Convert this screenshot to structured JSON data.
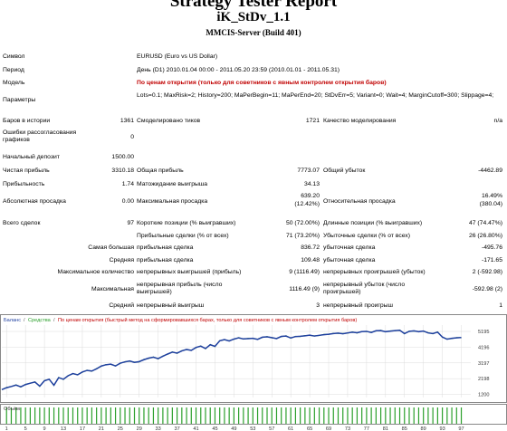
{
  "header": {
    "title": "Strategy Tester Report",
    "expert": "iK_StDv_1.1",
    "server": "MMCIS-Server (Build 401)"
  },
  "settings": {
    "symbol_label": "Символ",
    "symbol_value": "EURUSD (Euro vs US Dollar)",
    "period_label": "Период",
    "period_value": "День (D1) 2010.01.04 00:00 - 2011.05.20 23:59 (2010.01.01 - 2011.05.31)",
    "model_label": "Модель",
    "model_value": "По ценам открытия (только для советников с явным контролем открытия баров)",
    "params_label": "Параметры",
    "params_value": "Lots=0.1; MaxRisk=2; History=200; MaPerBegin=11; MaPerEnd=20; StDvErr=5; Variant=0; Wait=4; MarginCutoff=300; Slippage=4;"
  },
  "stats": {
    "bars_label": "Баров в истории",
    "bars_value": "1361",
    "ticks_label": "Смоделировано тиков",
    "ticks_value": "1721",
    "quality_label": "Качество моделирования",
    "quality_value": "n/a",
    "errors_label": "Ошибки рассогласования графиков",
    "errors_value": "0",
    "deposit_label": "Начальный депозит",
    "deposit_value": "1500.00",
    "net_label": "Чистая прибыль",
    "net_value": "3310.18",
    "gross_profit_label": "Общая прибыль",
    "gross_profit_value": "7773.07",
    "gross_loss_label": "Общий убыток",
    "gross_loss_value": "-4462.89",
    "pf_label": "Прибыльность",
    "pf_value": "1.74",
    "expected_label": "Матожидание выигрыша",
    "expected_value": "34.13",
    "abs_dd_label": "Абсолютная просадка",
    "abs_dd_value": "0.00",
    "max_dd_label": "Максимальная просадка",
    "max_dd_value1": "639.20",
    "max_dd_value2": "(12.42%)",
    "rel_dd_label": "Относительная просадка",
    "rel_dd_value1": "16.49%",
    "rel_dd_value2": "(380.04)",
    "total_label": "Всего сделок",
    "total_value": "97",
    "short_label": "Короткие позиции (% выигравших)",
    "short_value": "50 (72.00%)",
    "long_label": "Длинные позиции (% выигравших)",
    "long_value": "47 (74.47%)",
    "profit_trades_label": "Прибыльные сделки (% от всех)",
    "profit_trades_value": "71 (73.20%)",
    "loss_trades_label": "Убыточные сделки (% от всех)",
    "loss_trades_value": "26 (26.80%)",
    "largest_label": "Самая большая",
    "largest_profit_label": "прибыльная сделка",
    "largest_profit_value": "836.72",
    "largest_loss_label": "убыточная сделка",
    "largest_loss_value": "-495.76",
    "average_label": "Средняя",
    "avg_profit_label": "прибыльная сделка",
    "avg_profit_value": "109.48",
    "avg_loss_label": "убыточная сделка",
    "avg_loss_value": "-171.65",
    "max_count_label": "Максимальное количество",
    "max_cons_wins_label": "непрерывных выигрышей (прибыль)",
    "max_cons_wins_value": "9 (1116.49)",
    "max_cons_losses_label": "непрерывных проигрышей (убыток)",
    "max_cons_losses_value": "2 (-592.98)",
    "maximal_label": "Максимальная",
    "max_cons_profit_label": "непрерывная прибыль (число выигрышей)",
    "max_cons_profit_value": "1116.49 (9)",
    "max_cons_loss_label": "непрерывный убыток (число проигрышей)",
    "max_cons_loss_value": "-592.98 (2)",
    "avg_cons_label": "Средний",
    "avg_cons_wins_label": "непрерывный выигрыш",
    "avg_cons_wins_value": "3",
    "avg_cons_losses_label": "непрерывный проигрыш",
    "avg_cons_losses_value": "1"
  },
  "chart_data": {
    "type": "line",
    "legend": [
      "Баланс",
      "Средства",
      "По ценам открытия (быстрый метод на сформировавшихся барах, только для советников с явным контролем открытия баров)"
    ],
    "volume_label": "Объём",
    "colors": {
      "balance": "#1f3fa0",
      "equity": "#2ca02c",
      "volume": "#2ca02c",
      "legend_red": "#c00000",
      "grid": "#dcdcdc"
    },
    "y_ticks": [
      1200,
      2198,
      3197,
      4196,
      5195
    ],
    "ylim": [
      1000,
      5600
    ],
    "x_ticks": [
      1,
      5,
      9,
      13,
      17,
      21,
      25,
      29,
      33,
      37,
      41,
      45,
      49,
      53,
      57,
      61,
      65,
      69,
      73,
      77,
      81,
      85,
      89,
      93,
      97
    ],
    "xlim": [
      0,
      99
    ],
    "balance": [
      1500,
      1620,
      1700,
      1790,
      1680,
      1820,
      1910,
      1980,
      1720,
      2060,
      2160,
      1780,
      2260,
      2160,
      2380,
      2520,
      2440,
      2620,
      2720,
      2680,
      2820,
      3000,
      3080,
      3120,
      3000,
      3180,
      3260,
      3320,
      3230,
      3280,
      3400,
      3500,
      3560,
      3470,
      3620,
      3760,
      3880,
      3820,
      3960,
      4050,
      3990,
      4180,
      4260,
      4110,
      4350,
      4250,
      4600,
      4680,
      4590,
      4710,
      4790,
      4720,
      4740,
      4760,
      4690,
      4830,
      4850,
      4800,
      4740,
      4880,
      4900,
      4780,
      4870,
      4890,
      4920,
      4960,
      4900,
      4950,
      4990,
      5020,
      5060,
      5090,
      5050,
      5100,
      5150,
      5110,
      5180,
      5200,
      5130,
      5240,
      5250,
      5180,
      5210,
      5250,
      5270,
      5060,
      5200,
      5230,
      5180,
      5220,
      5100,
      5060,
      5150,
      4840,
      4700,
      4760,
      4790,
      4810
    ],
    "equity": [
      1500,
      1640,
      1690,
      1810,
      1660,
      1840,
      1900,
      2000,
      1700,
      2080,
      2150,
      1760,
      2280,
      2140,
      2400,
      2500,
      2460,
      2600,
      2740,
      2660,
      2840,
      2980,
      3100,
      3100,
      3020,
      3160,
      3280,
      3300,
      3250,
      3260,
      3420,
      3480,
      3580,
      3450,
      3640,
      3740,
      3900,
      3800,
      3980,
      4030,
      4010,
      4160,
      4280,
      4090,
      4370,
      4230,
      4620,
      4660,
      4610,
      4690,
      4810,
      4700,
      4760,
      4740,
      4710,
      4810,
      4870,
      4780,
      4760,
      4860,
      4920,
      4760,
      4890,
      4870,
      4940,
      4940,
      4920,
      4930,
      5010,
      5000,
      5080,
      5070,
      5070,
      5080,
      5170,
      5090,
      5200,
      5180,
      5150,
      5220,
      5270,
      5160,
      5230,
      5230,
      5290,
      5040,
      5220,
      5210,
      5200,
      5200,
      5120,
      5040,
      5170,
      4820,
      4720,
      4740,
      4810,
      4790
    ]
  }
}
